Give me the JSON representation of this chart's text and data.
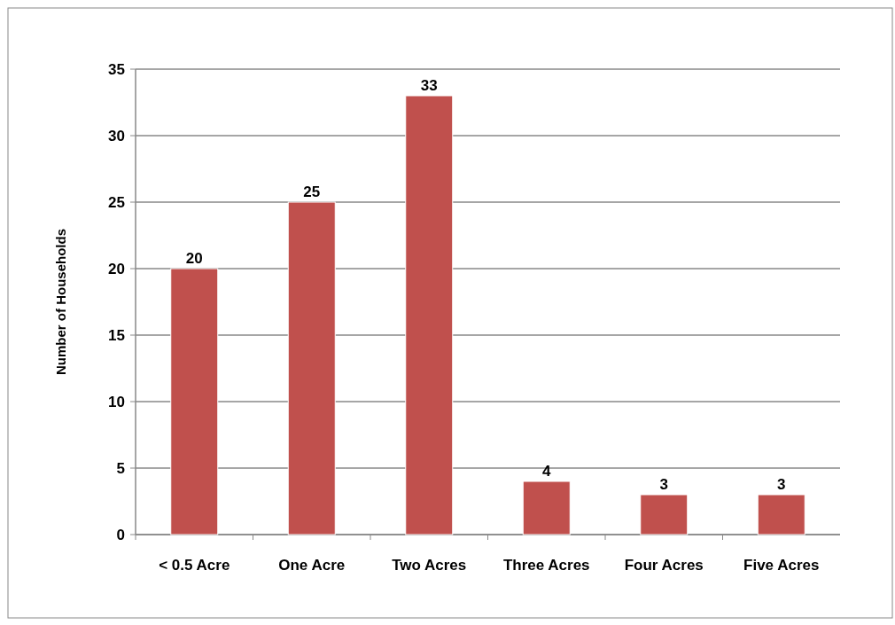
{
  "chart_data": {
    "type": "bar",
    "ylabel": "Number of Households",
    "categories": [
      "< 0.5 Acre",
      "One Acre",
      "Two Acres",
      "Three Acres",
      "Four Acres",
      "Five Acres"
    ],
    "values": [
      20,
      25,
      33,
      4,
      3,
      3
    ],
    "color": "#c0504d",
    "ylim": [
      0,
      35
    ],
    "yticks": [
      0,
      5,
      10,
      15,
      20,
      25,
      30,
      35
    ],
    "grid": "y",
    "data_labels": true
  }
}
